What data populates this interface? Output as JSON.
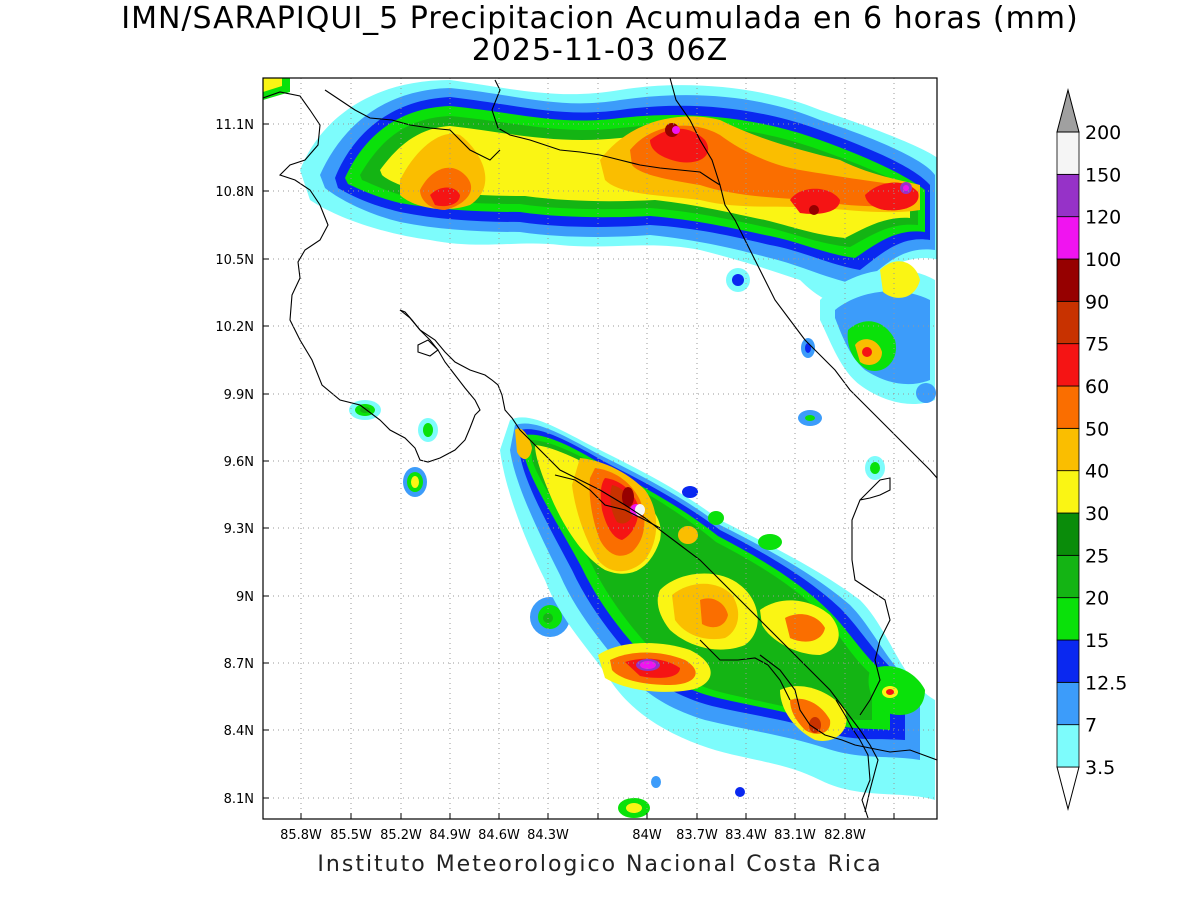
{
  "header": {
    "title_line1": "IMN/SARAPIQUI_5 Precipitacion Acumulada en 6 horas (mm)",
    "title_line2": "2025-11-03 06Z"
  },
  "map": {
    "x_ticks": [
      "85.8W",
      "85.5W",
      "85.2W",
      "84.9W",
      "84.6W",
      "84.3W",
      "84W",
      "83.7W",
      "83.4W",
      "83.1W",
      "82.8W"
    ],
    "y_ticks": [
      "11.1N",
      "10.8N",
      "10.5N",
      "10.2N",
      "9.9N",
      "9.6N",
      "9.3N",
      "9N",
      "8.7N",
      "8.4N",
      "8.1N"
    ],
    "grid": "dotted"
  },
  "legend": {
    "unit": "mm",
    "levels": [
      {
        "label": "3.5",
        "color": "#7dfcfc"
      },
      {
        "label": "7",
        "color": "#3c9cfa"
      },
      {
        "label": "12.5",
        "color": "#0a28f0"
      },
      {
        "label": "15",
        "color": "#0ae10a"
      },
      {
        "label": "20",
        "color": "#14b414"
      },
      {
        "label": "25",
        "color": "#0a8c0a"
      },
      {
        "label": "30",
        "color": "#faf514"
      },
      {
        "label": "40",
        "color": "#fabe00"
      },
      {
        "label": "50",
        "color": "#fa6e00"
      },
      {
        "label": "60",
        "color": "#f51414"
      },
      {
        "label": "75",
        "color": "#c83200"
      },
      {
        "label": "90",
        "color": "#960000"
      },
      {
        "label": "100",
        "color": "#f014f0"
      },
      {
        "label": "120",
        "color": "#9632c8"
      },
      {
        "label": "150",
        "color": "#f5f5f5"
      },
      {
        "label": "200",
        "color": "#a0a0a0"
      }
    ]
  },
  "footer": {
    "credit": "Instituto Meteorologico Nacional Costa Rica"
  }
}
